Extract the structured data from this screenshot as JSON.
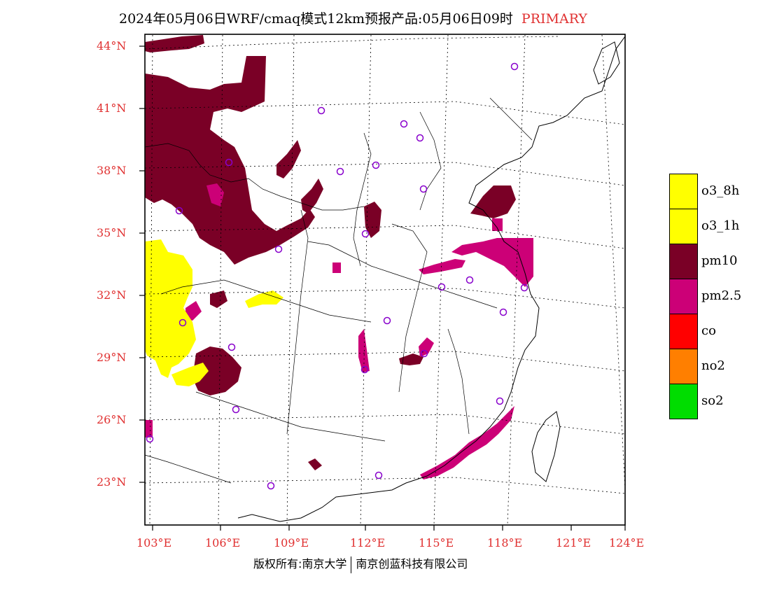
{
  "title": {
    "main": "2024年05月06日WRF/cmaq模式12km预报产品:05月06日09时",
    "tag": "PRIMARY"
  },
  "axes": {
    "lat_labels": [
      "44°N",
      "41°N",
      "38°N",
      "35°N",
      "32°N",
      "29°N",
      "26°N",
      "23°N"
    ],
    "lon_labels": [
      "103°E",
      "106°E",
      "109°E",
      "112°E",
      "115°E",
      "118°E",
      "121°E",
      "124°E"
    ]
  },
  "legend": [
    {
      "label": "o3_8h",
      "color": "#ffff00"
    },
    {
      "label": "o3_1h",
      "color": "#ffff00"
    },
    {
      "label": "pm10",
      "color": "#7a0026"
    },
    {
      "label": "pm2.5",
      "color": "#cc0077"
    },
    {
      "label": "co",
      "color": "#ff0000"
    },
    {
      "label": "no2",
      "color": "#ff7f00"
    },
    {
      "label": "so2",
      "color": "#00dd00"
    }
  ],
  "colors": {
    "pm10": "#7a0026",
    "pm25": "#cc0077",
    "o3": "#ffff00",
    "station": "#8800cc",
    "axis_label": "#e03030"
  },
  "footer": {
    "left": "版权所有:南京大学",
    "right": "南京创蓝科技有限公司"
  }
}
